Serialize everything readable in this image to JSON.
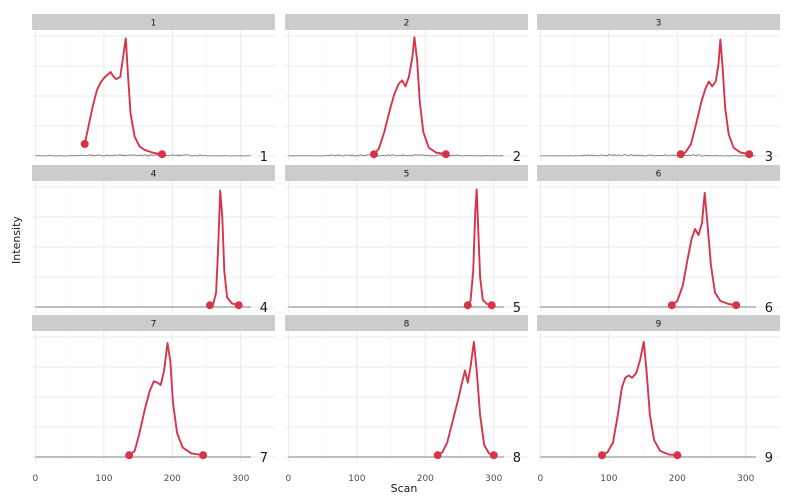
{
  "chart_data": {
    "type": "line",
    "xlabel": "Scan",
    "ylabel": "Intensity",
    "xlim": [
      -5,
      350
    ],
    "x_ticks": [
      0,
      100,
      200,
      300
    ],
    "x_tick_labels": [
      "0",
      "100",
      "200",
      "300"
    ],
    "y_gridlines": 5,
    "grid": true,
    "colors": {
      "peak": "#d7344a",
      "baseline": "#7f7f7f",
      "strip": "#cccccc"
    },
    "panels": [
      {
        "strip": "1",
        "label": "1",
        "start": 72,
        "end": 185,
        "noise": true,
        "peak_points": [
          [
            72,
            0.1
          ],
          [
            78,
            0.26
          ],
          [
            84,
            0.42
          ],
          [
            90,
            0.55
          ],
          [
            96,
            0.62
          ],
          [
            102,
            0.66
          ],
          [
            106,
            0.68
          ],
          [
            110,
            0.7
          ],
          [
            113,
            0.67
          ],
          [
            118,
            0.64
          ],
          [
            124,
            0.66
          ],
          [
            128,
            0.82
          ],
          [
            132,
            0.98
          ],
          [
            135,
            0.7
          ],
          [
            139,
            0.35
          ],
          [
            145,
            0.16
          ],
          [
            152,
            0.08
          ],
          [
            160,
            0.05
          ],
          [
            170,
            0.03
          ],
          [
            178,
            0.02
          ],
          [
            185,
            0.015
          ]
        ]
      },
      {
        "strip": "2",
        "label": "2",
        "start": 125,
        "end": 230,
        "noise": true,
        "peak_points": [
          [
            125,
            0.015
          ],
          [
            132,
            0.06
          ],
          [
            140,
            0.2
          ],
          [
            148,
            0.38
          ],
          [
            155,
            0.52
          ],
          [
            161,
            0.6
          ],
          [
            166,
            0.63
          ],
          [
            171,
            0.58
          ],
          [
            176,
            0.66
          ],
          [
            181,
            0.82
          ],
          [
            184,
            0.99
          ],
          [
            188,
            0.8
          ],
          [
            192,
            0.45
          ],
          [
            197,
            0.2
          ],
          [
            205,
            0.07
          ],
          [
            215,
            0.03
          ],
          [
            230,
            0.015
          ]
        ]
      },
      {
        "strip": "3",
        "label": "3",
        "start": 205,
        "end": 305,
        "noise": true,
        "peak_points": [
          [
            205,
            0.015
          ],
          [
            212,
            0.03
          ],
          [
            220,
            0.1
          ],
          [
            228,
            0.28
          ],
          [
            235,
            0.45
          ],
          [
            241,
            0.56
          ],
          [
            246,
            0.62
          ],
          [
            251,
            0.58
          ],
          [
            256,
            0.62
          ],
          [
            260,
            0.76
          ],
          [
            263,
            0.97
          ],
          [
            266,
            0.75
          ],
          [
            270,
            0.4
          ],
          [
            275,
            0.18
          ],
          [
            282,
            0.07
          ],
          [
            292,
            0.03
          ],
          [
            305,
            0.015
          ]
        ]
      },
      {
        "strip": "4",
        "label": "4",
        "start": 255,
        "end": 297,
        "noise": false,
        "peak_points": [
          [
            255,
            0.015
          ],
          [
            260,
            0.03
          ],
          [
            264,
            0.12
          ],
          [
            267,
            0.5
          ],
          [
            270,
            0.97
          ],
          [
            273,
            0.75
          ],
          [
            276,
            0.3
          ],
          [
            280,
            0.08
          ],
          [
            287,
            0.03
          ],
          [
            297,
            0.015
          ]
        ]
      },
      {
        "strip": "5",
        "label": "5",
        "start": 262,
        "end": 297,
        "noise": false,
        "peak_points": [
          [
            262,
            0.015
          ],
          [
            266,
            0.05
          ],
          [
            270,
            0.3
          ],
          [
            273,
            0.8
          ],
          [
            275,
            0.98
          ],
          [
            277,
            0.7
          ],
          [
            280,
            0.25
          ],
          [
            284,
            0.06
          ],
          [
            290,
            0.025
          ],
          [
            297,
            0.015
          ]
        ]
      },
      {
        "strip": "6",
        "label": "6",
        "start": 192,
        "end": 286,
        "noise": false,
        "peak_points": [
          [
            192,
            0.015
          ],
          [
            200,
            0.05
          ],
          [
            208,
            0.18
          ],
          [
            215,
            0.4
          ],
          [
            221,
            0.57
          ],
          [
            226,
            0.65
          ],
          [
            231,
            0.6
          ],
          [
            236,
            0.7
          ],
          [
            240,
            0.95
          ],
          [
            244,
            0.7
          ],
          [
            249,
            0.35
          ],
          [
            255,
            0.12
          ],
          [
            263,
            0.05
          ],
          [
            275,
            0.025
          ],
          [
            286,
            0.015
          ]
        ]
      },
      {
        "strip": "7",
        "label": "7",
        "start": 137,
        "end": 245,
        "noise": false,
        "peak_points": [
          [
            137,
            0.015
          ],
          [
            145,
            0.05
          ],
          [
            152,
            0.2
          ],
          [
            160,
            0.4
          ],
          [
            167,
            0.55
          ],
          [
            173,
            0.63
          ],
          [
            178,
            0.62
          ],
          [
            183,
            0.6
          ],
          [
            188,
            0.72
          ],
          [
            193,
            0.95
          ],
          [
            197,
            0.8
          ],
          [
            201,
            0.45
          ],
          [
            207,
            0.2
          ],
          [
            215,
            0.08
          ],
          [
            228,
            0.03
          ],
          [
            245,
            0.015
          ]
        ]
      },
      {
        "strip": "8",
        "label": "8",
        "start": 218,
        "end": 300,
        "noise": false,
        "peak_points": [
          [
            218,
            0.015
          ],
          [
            225,
            0.04
          ],
          [
            232,
            0.12
          ],
          [
            240,
            0.3
          ],
          [
            248,
            0.48
          ],
          [
            254,
            0.63
          ],
          [
            258,
            0.72
          ],
          [
            262,
            0.62
          ],
          [
            266,
            0.75
          ],
          [
            271,
            0.96
          ],
          [
            275,
            0.72
          ],
          [
            280,
            0.35
          ],
          [
            286,
            0.1
          ],
          [
            293,
            0.03
          ],
          [
            300,
            0.015
          ]
        ]
      },
      {
        "strip": "9",
        "label": "9",
        "start": 90,
        "end": 200,
        "noise": false,
        "peak_points": [
          [
            90,
            0.015
          ],
          [
            98,
            0.04
          ],
          [
            106,
            0.12
          ],
          [
            113,
            0.35
          ],
          [
            119,
            0.58
          ],
          [
            124,
            0.66
          ],
          [
            129,
            0.68
          ],
          [
            134,
            0.66
          ],
          [
            140,
            0.7
          ],
          [
            146,
            0.82
          ],
          [
            151,
            0.96
          ],
          [
            155,
            0.72
          ],
          [
            160,
            0.35
          ],
          [
            166,
            0.14
          ],
          [
            175,
            0.05
          ],
          [
            188,
            0.02
          ],
          [
            200,
            0.015
          ]
        ]
      }
    ]
  }
}
